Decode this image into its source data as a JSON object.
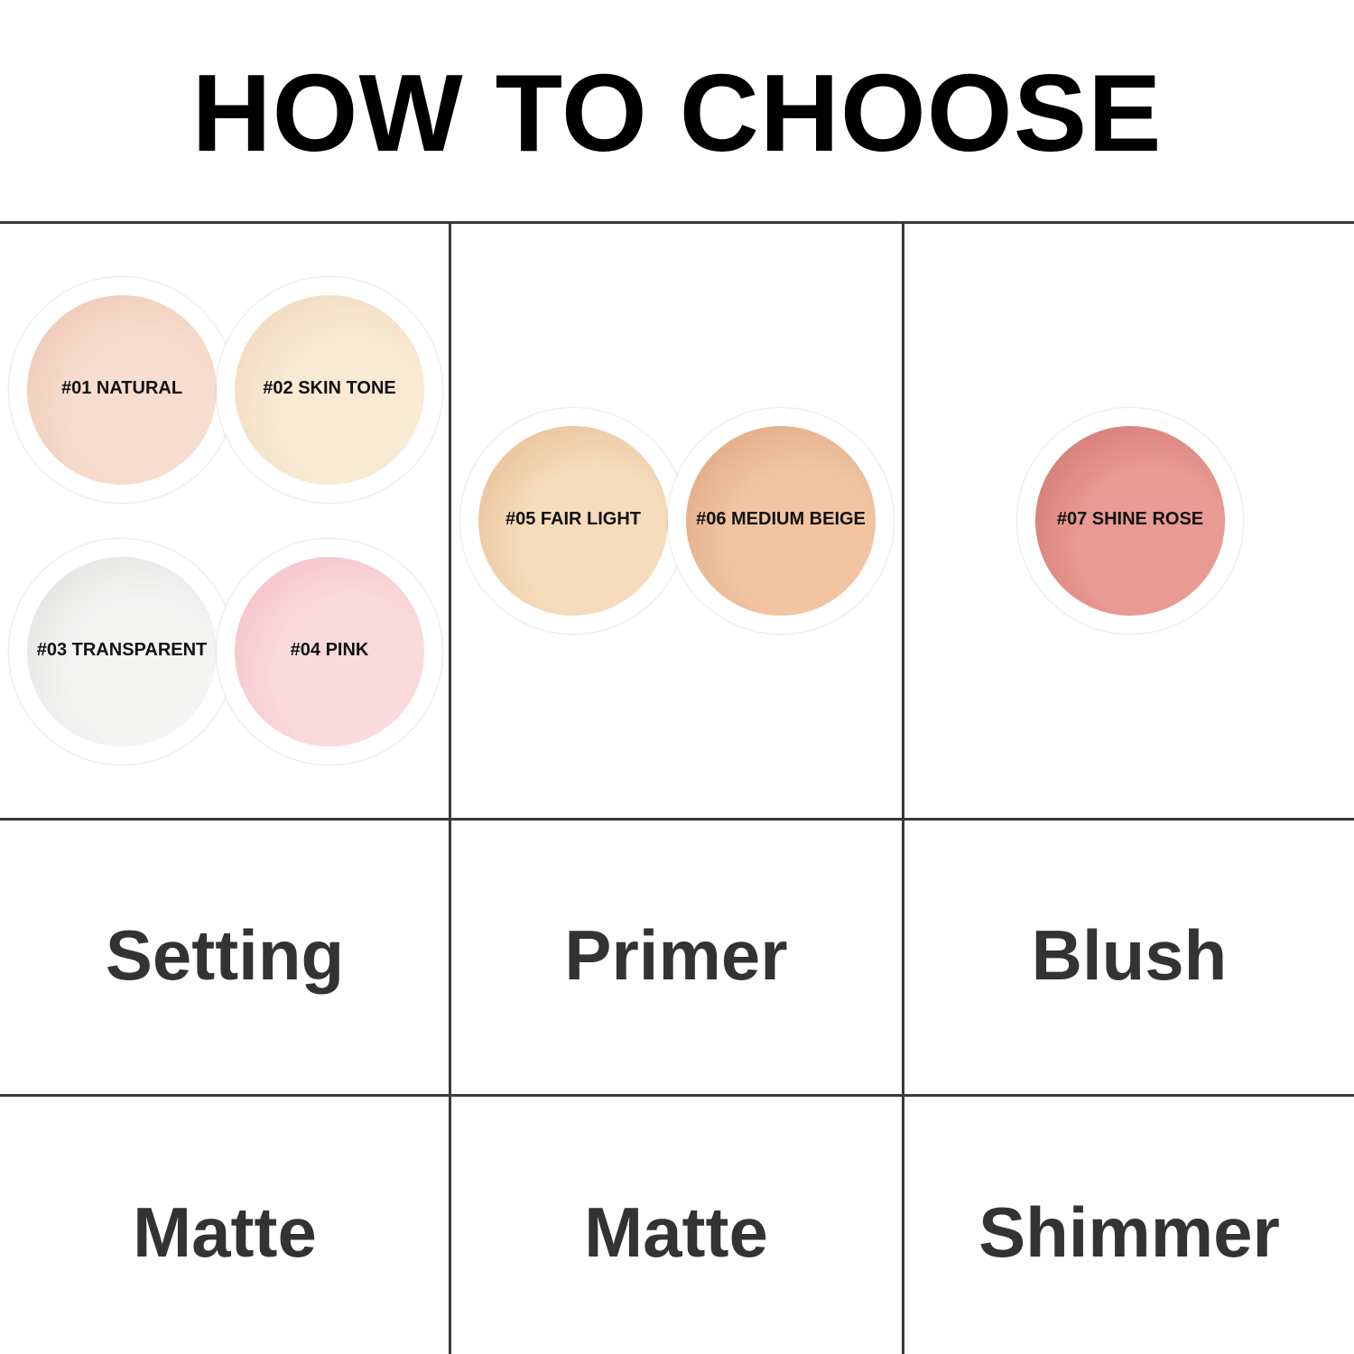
{
  "title": "HOW TO CHOOSE",
  "columns": [
    {
      "use": "Setting",
      "finish": "Matte",
      "shades": [
        {
          "label": "#01 NATURAL",
          "color": "#f7ddcf",
          "accent": "#ecc2ab"
        },
        {
          "label": "#02 SKIN TONE",
          "color": "#f9ead4",
          "accent": "#ecd3b2"
        },
        {
          "label": "#03 TRANSPARENT",
          "color": "#f4f4f3",
          "accent": "#dcdcda"
        },
        {
          "label": "#04 PINK",
          "color": "#fbdadd",
          "accent": "#f1b9bf"
        }
      ]
    },
    {
      "use": "Primer",
      "finish": "Matte",
      "shades": [
        {
          "label": "#05 FAIR LIGHT",
          "color": "#f6dcbc",
          "accent": "#e2b68c"
        },
        {
          "label": "#06 MEDIUM BEIGE",
          "color": "#f2c4a2",
          "accent": "#d9a07a"
        }
      ]
    },
    {
      "use": "Blush",
      "finish": "Shimmer",
      "shades": [
        {
          "label": "#07 SHINE ROSE",
          "color": "#e99a92",
          "accent": "#c9706a"
        }
      ]
    }
  ]
}
